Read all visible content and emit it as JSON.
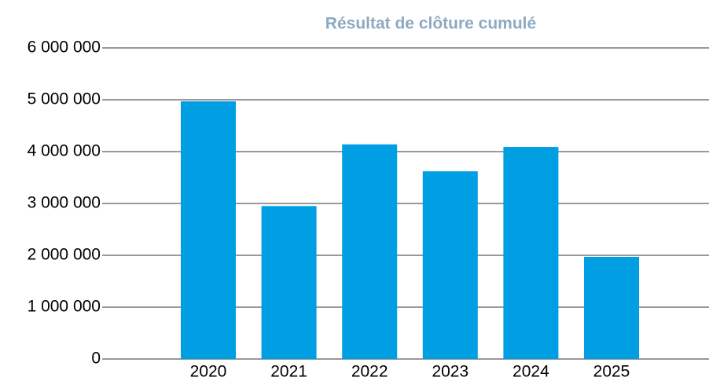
{
  "chart_data": {
    "type": "bar",
    "title": "Résultat de clôture cumulé",
    "categories": [
      "2020",
      "2021",
      "2022",
      "2023",
      "2024",
      "2025"
    ],
    "values": [
      4970000,
      2950000,
      4140000,
      3620000,
      4090000,
      1970000
    ],
    "color": "#009fe3",
    "ylim": [
      0,
      6000000
    ],
    "yticks": [
      0,
      {
        "value": 1000000,
        "label": "1 000 000"
      },
      {
        "value": 2000000,
        "label": "2 000 000"
      },
      {
        "value": 3000000,
        "label": "3 000 000"
      },
      {
        "value": 4000000,
        "label": "4 000 000"
      },
      {
        "value": 5000000,
        "label": "5 000 000"
      },
      {
        "value": 6000000,
        "label": "6 000 000"
      }
    ],
    "grid": true
  }
}
